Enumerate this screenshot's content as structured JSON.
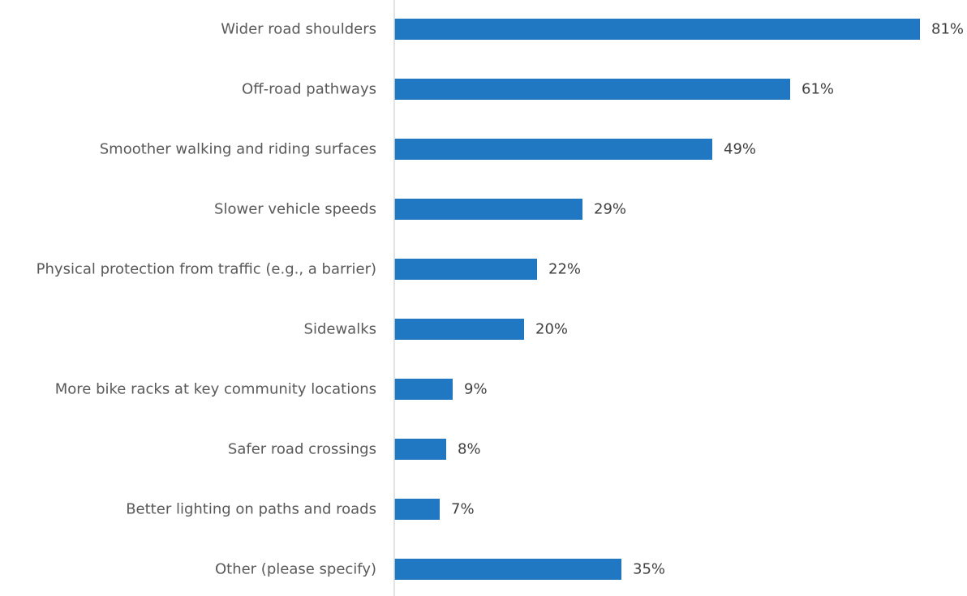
{
  "chart_data": {
    "type": "bar",
    "orientation": "horizontal",
    "categories": [
      "Wider road shoulders",
      "Off-road pathways",
      "Smoother walking and riding surfaces",
      "Slower vehicle speeds",
      "Physical protection from traffic (e.g., a barrier)",
      "Sidewalks",
      "More bike racks at key community locations",
      "Safer road crossings",
      "Better lighting on paths and roads",
      "Other (please specify)"
    ],
    "values": [
      81,
      61,
      49,
      29,
      22,
      20,
      9,
      8,
      7,
      35
    ],
    "value_labels": [
      "81%",
      "61%",
      "49%",
      "29%",
      "22%",
      "20%",
      "9%",
      "8%",
      "7%",
      "35%"
    ],
    "title": "",
    "xlabel": "",
    "ylabel": "",
    "xlim": [
      0,
      100
    ],
    "grid": false,
    "legend": "none",
    "colors": {
      "bar": "#1f78c1",
      "axis": "#d9d9d9",
      "category_text": "#595959",
      "value_text": "#404040"
    }
  }
}
